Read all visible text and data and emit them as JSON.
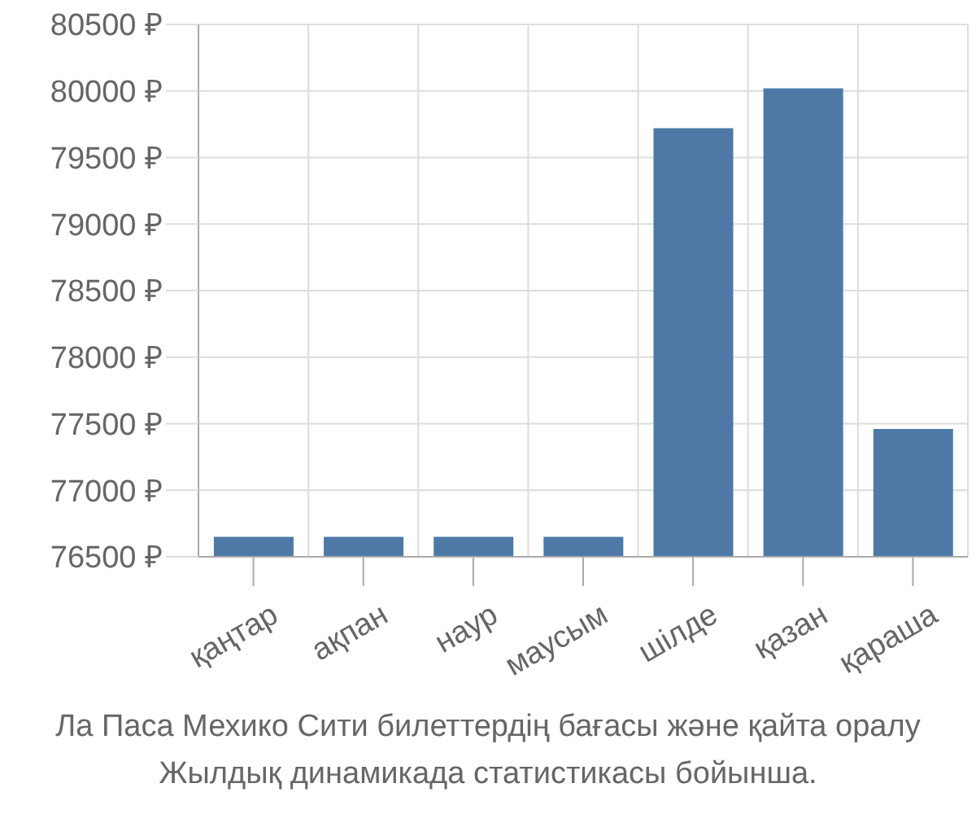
{
  "chart_data": {
    "type": "bar",
    "title": "Ла Паса Мехико Сити билеттердің бағасы және қайта оралу",
    "annotations": [
      "Жылдық динамикада статистикасы бойынша."
    ],
    "categories": [
      "қаңтар",
      "ақпан",
      "наур",
      "маусым",
      "шілде",
      "қазан",
      "қараша"
    ],
    "values": [
      76650,
      76650,
      76650,
      76650,
      79720,
      80020,
      77460
    ],
    "color": "#4e79a7",
    "ylim": [
      76500,
      80500
    ],
    "yticks": [
      {
        "value": 76500,
        "label": "76500 ₽"
      },
      {
        "value": 77000,
        "label": "77000 ₽"
      },
      {
        "value": 77500,
        "label": "77500 ₽"
      },
      {
        "value": 78000,
        "label": "78000 ₽"
      },
      {
        "value": 78500,
        "label": "78500 ₽"
      },
      {
        "value": 79000,
        "label": "79000 ₽"
      },
      {
        "value": 79500,
        "label": "79500 ₽"
      },
      {
        "value": 80000,
        "label": "80000 ₽"
      },
      {
        "value": 80500,
        "label": "80500 ₽"
      }
    ],
    "grid": true
  }
}
